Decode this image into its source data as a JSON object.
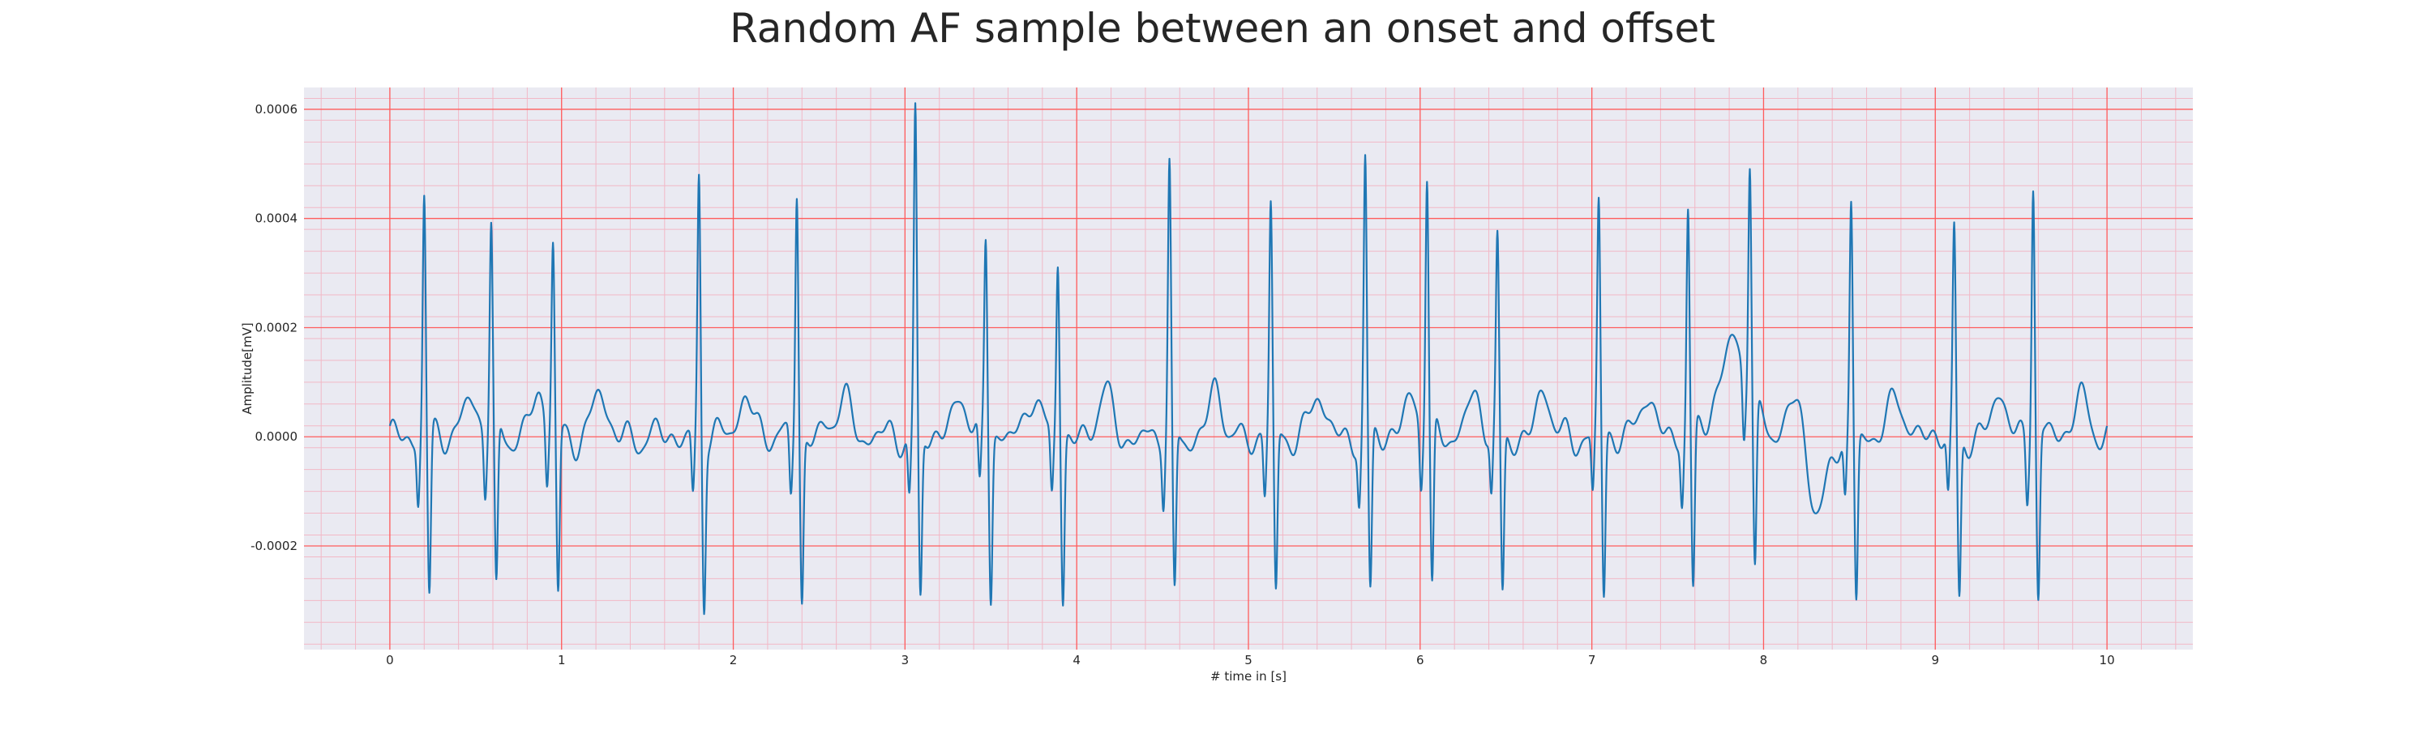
{
  "chart_data": {
    "type": "line",
    "title": "Random AF sample between an onset and offset",
    "xlabel": "# time in [s]",
    "ylabel": "Amplitude[mV]",
    "xlim": [
      -0.5,
      10.5
    ],
    "ylim": [
      -0.00039,
      0.00064
    ],
    "xticks": [
      0,
      1,
      2,
      3,
      4,
      5,
      6,
      7,
      8,
      9,
      10
    ],
    "xtick_labels": [
      "0",
      "1",
      "2",
      "3",
      "4",
      "5",
      "6",
      "7",
      "8",
      "9",
      "10"
    ],
    "yticks": [
      -0.0002,
      0.0,
      0.0002,
      0.0004,
      0.0006
    ],
    "ytick_labels": [
      "-0.0002",
      "0.0000",
      "0.0002",
      "0.0004",
      "0.0006"
    ],
    "grid": true,
    "minor_grid": true,
    "legend": "none",
    "colors": {
      "line": "#1f77b4",
      "background": "#eaeaf2",
      "major_grid": "#ff5c5c",
      "minor_grid": "#f2b8c6"
    },
    "series": [
      {
        "beats": [
          {
            "t": 0.2,
            "amp": 0.000445
          },
          {
            "t": 0.59,
            "amp": 0.000385
          },
          {
            "t": 0.95,
            "amp": 0.000345
          },
          {
            "t": 1.8,
            "amp": 0.000478
          },
          {
            "t": 2.37,
            "amp": 0.000462
          },
          {
            "t": 3.06,
            "amp": 0.000598
          },
          {
            "t": 3.47,
            "amp": 0.000362
          },
          {
            "t": 3.89,
            "amp": 0.000328
          },
          {
            "t": 4.54,
            "amp": 0.000488
          },
          {
            "t": 5.13,
            "amp": 0.000418
          },
          {
            "t": 5.68,
            "amp": 0.000504
          },
          {
            "t": 6.04,
            "amp": 0.000472
          },
          {
            "t": 6.45,
            "amp": 0.000348
          },
          {
            "t": 7.04,
            "amp": 0.000425
          },
          {
            "t": 7.56,
            "amp": 0.000418
          },
          {
            "t": 7.92,
            "amp": 0.000445
          },
          {
            "t": 8.51,
            "amp": 0.000428
          },
          {
            "t": 9.11,
            "amp": 0.000375
          },
          {
            "t": 9.57,
            "amp": 0.000478
          }
        ]
      }
    ]
  }
}
